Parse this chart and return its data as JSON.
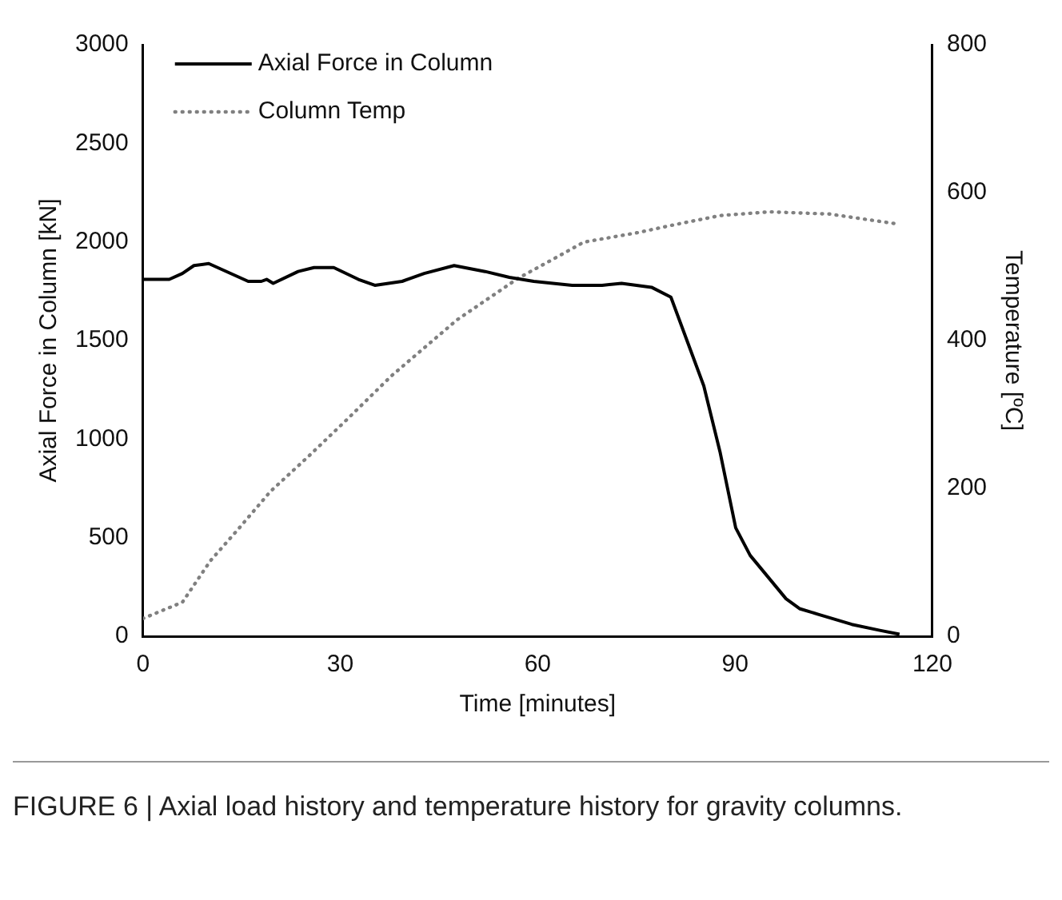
{
  "chart_data": {
    "type": "line",
    "xlabel": "Time [minutes]",
    "ylabel": "Axial Force in Column [kN]",
    "y2label": "Temperature [ºC]",
    "xlim": [
      0,
      120
    ],
    "xticks": [
      0,
      30,
      60,
      90,
      120
    ],
    "ylim": [
      0,
      3000
    ],
    "yticks": [
      0,
      500,
      1000,
      1500,
      2000,
      2500,
      3000
    ],
    "y2lim": [
      0,
      800
    ],
    "y2ticks": [
      0,
      200,
      400,
      600,
      800
    ],
    "grid": false,
    "legend": "top left",
    "marker": "none",
    "annotations": [
      "FIGURE 6 | Axial load history and temperature history for gravity columns."
    ],
    "series": [
      {
        "name": "Axial Force in Column",
        "color": "#000000",
        "line_style": "solid",
        "x": [
          0,
          4,
          6,
          7.75,
          10,
          16,
          18,
          18.8,
          19.8,
          23.6,
          26,
          29,
          32.75,
          35.25,
          39.4,
          42.75,
          47.3,
          52,
          55.7,
          59.4,
          65.25,
          69.8,
          72.75,
          77.3,
          80.25,
          85.25,
          87.75,
          90.1,
          92.3,
          97.75,
          99.8,
          102.75,
          107.75,
          112,
          115
        ],
        "values": [
          1810,
          1810,
          1840,
          1880,
          1890,
          1800,
          1800,
          1810,
          1790,
          1850,
          1870,
          1870,
          1810,
          1780,
          1800,
          1840,
          1880,
          1850,
          1820,
          1800,
          1780,
          1780,
          1790,
          1770,
          1720,
          1270,
          930,
          550,
          410,
          190,
          140,
          110,
          60,
          30,
          10
        ]
      },
      {
        "name": "Column Temp",
        "color": "#808080",
        "line_style": "dotted",
        "axis": "y2",
        "x": [
          0,
          6,
          10.25,
          14.4,
          19.4,
          25.25,
          31,
          37.75,
          47.75,
          57,
          62.75,
          67,
          75.25,
          81,
          87.75,
          95.25,
          104.4,
          114.4
        ],
        "values": [
          24,
          46,
          102,
          144,
          196,
          244,
          293,
          352,
          428,
          484,
          512,
          533,
          546,
          557,
          569,
          574,
          571,
          558
        ]
      }
    ]
  }
}
